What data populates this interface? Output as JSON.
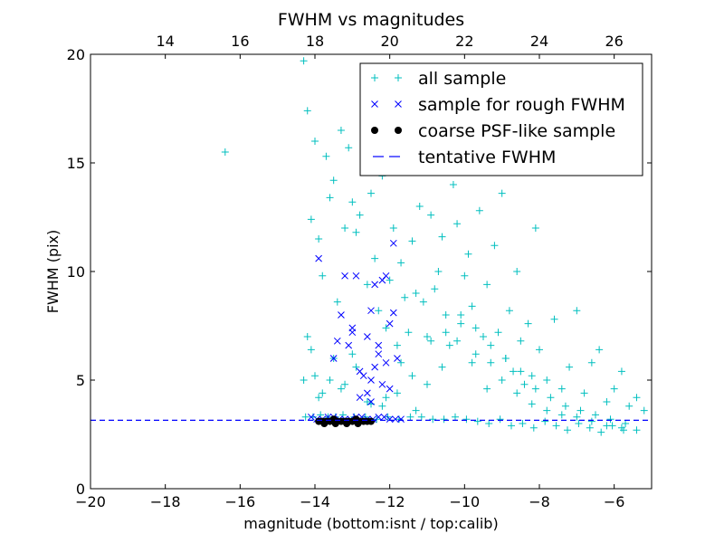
{
  "chart_data": {
    "type": "scatter",
    "title": "FWHM vs magnitudes",
    "xlabel": "magnitude (bottom:isnt / top:calib)",
    "ylabel": "FWHM (pix)",
    "xlim": [
      -20,
      -5
    ],
    "ylim": [
      0,
      20
    ],
    "x_ticks": [
      -20,
      -18,
      -16,
      -14,
      -12,
      -10,
      -8,
      -6
    ],
    "x_tick_labels": [
      "−20",
      "−18",
      "−16",
      "−14",
      "−12",
      "−10",
      "−8",
      "−6"
    ],
    "y_ticks": [
      0,
      5,
      10,
      15,
      20
    ],
    "y_tick_labels": [
      "0",
      "5",
      "10",
      "15",
      "20"
    ],
    "top_axis": {
      "ticks": [
        14,
        16,
        18,
        20,
        22,
        24,
        26
      ],
      "tick_labels": [
        "14",
        "16",
        "18",
        "20",
        "22",
        "24",
        "26"
      ],
      "offset": 32
    },
    "legend_position": "top-right",
    "grid": false,
    "series": [
      {
        "name": "all sample",
        "marker": "plus",
        "color": "#00bfbf",
        "x": [
          -16.4,
          -14.3,
          -14.2,
          -14.1,
          -14.0,
          -13.9,
          -13.8,
          -13.7,
          -13.6,
          -13.5,
          -13.4,
          -13.3,
          -13.2,
          -13.1,
          -13.0,
          -12.9,
          -12.8,
          -12.7,
          -12.6,
          -12.5,
          -12.4,
          -12.3,
          -12.2,
          -12.1,
          -12.0,
          -11.9,
          -11.8,
          -11.7,
          -11.6,
          -11.5,
          -11.4,
          -11.3,
          -11.2,
          -11.1,
          -11.0,
          -10.9,
          -10.8,
          -10.7,
          -10.6,
          -10.5,
          -10.4,
          -10.3,
          -10.2,
          -10.1,
          -10.0,
          -9.9,
          -9.8,
          -9.7,
          -9.6,
          -9.5,
          -9.4,
          -9.3,
          -9.2,
          -9.1,
          -9.0,
          -8.9,
          -8.8,
          -8.7,
          -8.6,
          -8.5,
          -8.4,
          -8.3,
          -8.2,
          -8.1,
          -8.0,
          -7.8,
          -7.6,
          -7.4,
          -7.2,
          -7.0,
          -6.8,
          -6.6,
          -6.4,
          -6.2,
          -6.0,
          -5.8,
          -5.6,
          -5.4,
          -5.2,
          -14.2,
          -14.0,
          -13.8,
          -13.5,
          -13.2,
          -12.9,
          -12.5,
          -12.1,
          -11.7,
          -11.3,
          -10.9,
          -10.5,
          -10.1,
          -9.7,
          -9.3,
          -8.9,
          -8.5,
          -8.1,
          -7.7,
          -7.3,
          -6.9,
          -6.5,
          -6.1,
          -5.7,
          -14.3,
          -14.1,
          -13.9,
          -13.6,
          -13.3,
          -13.0,
          -12.6,
          -12.2,
          -11.8,
          -11.4,
          -11.0,
          -10.6,
          -10.2,
          -9.8,
          -9.4,
          -9.0,
          -8.6,
          -8.2,
          -7.8,
          -7.4,
          -7.0,
          -6.6,
          -6.2,
          -5.8,
          -5.4,
          -14.25,
          -14.05,
          -13.85,
          -13.65,
          -13.45,
          -13.25,
          -12.95,
          -12.65,
          -12.35,
          -12.05,
          -11.75,
          -11.45,
          -11.15,
          -10.85,
          -10.55,
          -10.25,
          -9.95,
          -9.65,
          -9.35,
          -9.05,
          -8.75,
          -8.45,
          -8.15,
          -7.85,
          -7.55,
          -7.25,
          -6.95,
          -6.65,
          -6.35,
          -6.05,
          -5.75
        ],
        "y": [
          15.5,
          19.7,
          17.4,
          12.4,
          16.0,
          11.5,
          9.8,
          15.3,
          13.4,
          14.2,
          8.6,
          16.5,
          12.0,
          15.7,
          13.2,
          11.8,
          12.6,
          14.8,
          9.4,
          13.6,
          10.6,
          8.2,
          14.4,
          7.4,
          9.6,
          12.0,
          6.6,
          10.4,
          8.8,
          7.2,
          11.4,
          9.0,
          13.0,
          8.6,
          7.0,
          12.6,
          9.2,
          10.0,
          11.6,
          8.0,
          6.6,
          14.0,
          12.2,
          7.6,
          9.8,
          10.8,
          8.4,
          6.2,
          12.8,
          7.0,
          9.4,
          5.8,
          11.2,
          7.2,
          13.6,
          6.0,
          8.2,
          5.4,
          10.0,
          6.8,
          4.8,
          7.6,
          5.2,
          12.0,
          6.4,
          5.0,
          7.8,
          4.6,
          5.6,
          8.2,
          4.4,
          5.8,
          6.4,
          4.0,
          4.6,
          5.4,
          3.8,
          4.2,
          3.6,
          7.0,
          5.2,
          4.4,
          6.0,
          4.8,
          5.6,
          3.9,
          4.2,
          5.8,
          3.6,
          6.8,
          7.2,
          8.0,
          7.4,
          6.6,
          6.0,
          5.4,
          4.6,
          4.2,
          3.8,
          3.6,
          3.4,
          3.2,
          3.0,
          5.0,
          6.4,
          4.2,
          5.0,
          4.6,
          6.2,
          4.0,
          3.8,
          4.4,
          5.2,
          4.8,
          5.6,
          6.8,
          5.8,
          4.6,
          5.0,
          4.4,
          3.9,
          3.6,
          3.4,
          3.3,
          3.1,
          2.9,
          2.8,
          2.7,
          3.3,
          3.3,
          3.4,
          3.3,
          3.3,
          3.4,
          3.3,
          3.3,
          3.2,
          3.3,
          3.2,
          3.3,
          3.3,
          3.2,
          3.2,
          3.3,
          3.2,
          3.1,
          3.0,
          3.2,
          2.9,
          3.0,
          2.8,
          3.1,
          2.9,
          2.7,
          3.0,
          2.8,
          2.6,
          2.9,
          2.7
        ]
      },
      {
        "name": "sample for rough FWHM",
        "marker": "x",
        "color": "#0000ff",
        "x": [
          -13.9,
          -13.2,
          -13.1,
          -13.0,
          -12.8,
          -12.6,
          -12.5,
          -12.5,
          -12.4,
          -12.3,
          -12.2,
          -12.1,
          -12.0,
          -11.9,
          -11.9,
          -13.3,
          -13.0,
          -12.7,
          -12.4,
          -12.2,
          -13.4,
          -12.9,
          -12.6,
          -12.3,
          -12.0,
          -11.8,
          -13.5,
          -12.8,
          -12.1,
          -12.5,
          -14.1,
          -13.8,
          -13.5,
          -13.2,
          -12.9,
          -12.6,
          -12.3,
          -12.0,
          -11.7,
          -13.95,
          -13.65,
          -13.35,
          -13.05,
          -12.75,
          -12.45,
          -12.15,
          -11.85
        ],
        "y": [
          10.6,
          9.8,
          6.6,
          7.2,
          5.4,
          7.0,
          8.2,
          5.0,
          9.4,
          6.2,
          9.6,
          5.8,
          4.6,
          11.3,
          8.1,
          8.0,
          7.4,
          5.2,
          5.6,
          4.8,
          6.8,
          9.8,
          4.4,
          6.6,
          7.6,
          6.0,
          6.0,
          4.2,
          9.8,
          4.0,
          3.3,
          3.2,
          3.3,
          3.2,
          3.3,
          3.2,
          3.3,
          3.2,
          3.2,
          3.2,
          3.3,
          3.2,
          3.2,
          3.3,
          3.2,
          3.3,
          3.2
        ]
      },
      {
        "name": "coarse PSF-like sample",
        "marker": "circle",
        "color": "#000000",
        "x": [
          -13.9,
          -13.8,
          -13.7,
          -13.6,
          -13.5,
          -13.4,
          -13.3,
          -13.2,
          -13.1,
          -13.0,
          -12.9,
          -12.8,
          -12.7,
          -12.6,
          -12.5,
          -13.75,
          -13.45,
          -13.15,
          -12.85
        ],
        "y": [
          3.1,
          3.1,
          3.1,
          3.1,
          3.2,
          3.1,
          3.1,
          3.1,
          3.1,
          3.1,
          3.2,
          3.1,
          3.1,
          3.1,
          3.1,
          3.0,
          3.0,
          3.0,
          3.0
        ]
      },
      {
        "name": "tentative FWHM",
        "type": "hline",
        "line_style": "dashed",
        "color": "#0000ff",
        "y": 3.15
      }
    ]
  }
}
